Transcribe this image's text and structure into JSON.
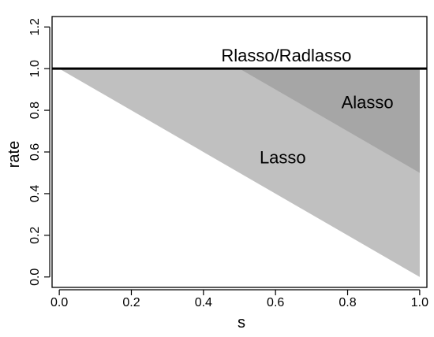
{
  "chart_data": {
    "type": "area",
    "xlabel": "s",
    "ylabel": "rate",
    "xlim": [
      -0.02,
      1.02
    ],
    "ylim": [
      -0.05,
      1.25
    ],
    "x_ticks": [
      "0.0",
      "0.2",
      "0.4",
      "0.6",
      "0.8",
      "1.0"
    ],
    "x_tick_values": [
      0,
      0.2,
      0.4,
      0.6,
      0.8,
      1.0
    ],
    "y_ticks": [
      "0.0",
      "0.2",
      "0.4",
      "0.6",
      "0.8",
      "1.0",
      "1.2"
    ],
    "y_tick_values": [
      0,
      0.2,
      0.4,
      0.6,
      0.8,
      1.0,
      1.2
    ],
    "grid": false,
    "series": [
      {
        "name": "Lasso",
        "color": "#c0c0c0",
        "points": [
          [
            0,
            1.0
          ],
          [
            1.0,
            1.0
          ],
          [
            1.0,
            0.0
          ]
        ]
      },
      {
        "name": "Alasso",
        "color": "#a6a6a6",
        "points": [
          [
            0.5,
            1.0
          ],
          [
            1.0,
            1.0
          ],
          [
            1.0,
            0.5
          ]
        ]
      },
      {
        "name": "Rlasso/Radlasso",
        "color": "#000000",
        "line": [
          [
            -0.02,
            1.0
          ],
          [
            1.02,
            1.0
          ]
        ]
      }
    ],
    "annotations": [
      {
        "text": "Rlasso/Radlasso",
        "x": 0.63,
        "y": 1.065
      },
      {
        "text": "Alasso",
        "x": 0.855,
        "y": 0.84
      },
      {
        "text": "Lasso",
        "x": 0.62,
        "y": 0.575
      }
    ]
  }
}
